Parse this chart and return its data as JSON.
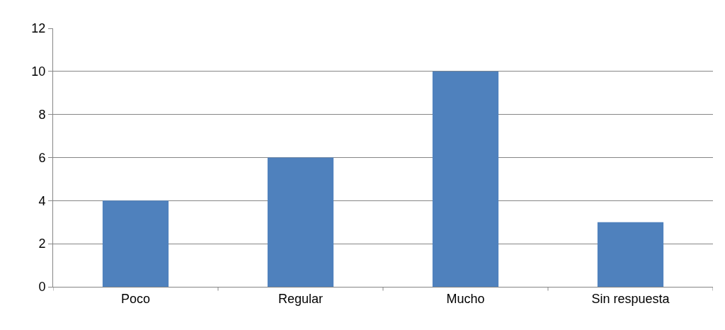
{
  "chart_data": {
    "type": "bar",
    "categories": [
      "Poco",
      "Regular",
      "Mucho",
      "Sin respuesta"
    ],
    "values": [
      4,
      6,
      10,
      3
    ],
    "color": "#4f81bd",
    "ylim": [
      0,
      12
    ],
    "yticks": [
      0,
      2,
      4,
      6,
      8,
      10,
      12
    ],
    "grid": "y"
  }
}
